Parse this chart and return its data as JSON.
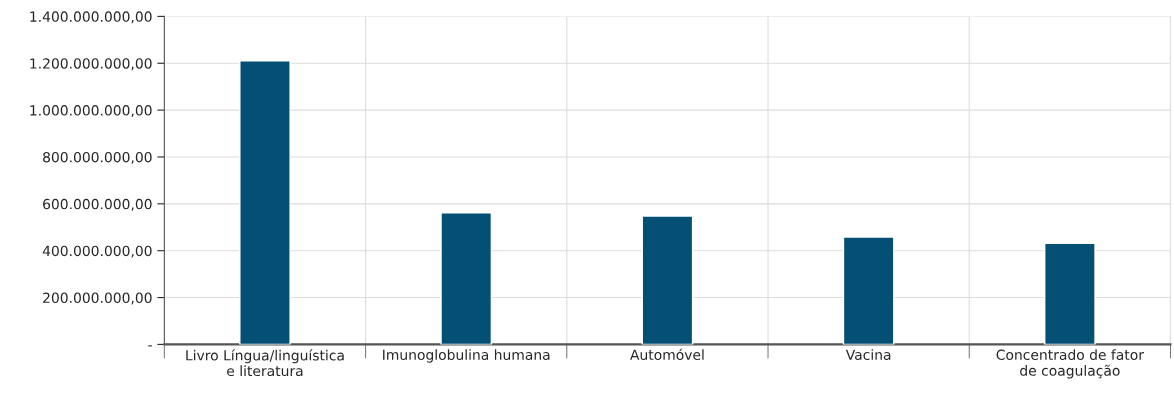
{
  "chart_data": {
    "type": "bar",
    "categories": [
      "Livro Língua/linguística\ne literatura",
      "Imunoglobulina humana",
      "Automóvel",
      "Vacina",
      "Concentrado de fator\nde coagulação"
    ],
    "values": [
      1210000000,
      562000000,
      548000000,
      458000000,
      431000000
    ],
    "color": "#044f74",
    "ylim": [
      0,
      1400000000
    ],
    "yticks": [
      {
        "value": 0,
        "label": "-"
      },
      {
        "value": 200000000,
        "label": "200.000.000,00"
      },
      {
        "value": 400000000,
        "label": "400.000.000,00"
      },
      {
        "value": 600000000,
        "label": "600.000.000,00"
      },
      {
        "value": 800000000,
        "label": "800.000.000,00"
      },
      {
        "value": 1000000000,
        "label": "1.000.000.000,00"
      },
      {
        "value": 1200000000,
        "label": "1.200.000.000,00"
      },
      {
        "value": 1400000000,
        "label": "1.400.000.000,00"
      }
    ],
    "grid": true
  }
}
